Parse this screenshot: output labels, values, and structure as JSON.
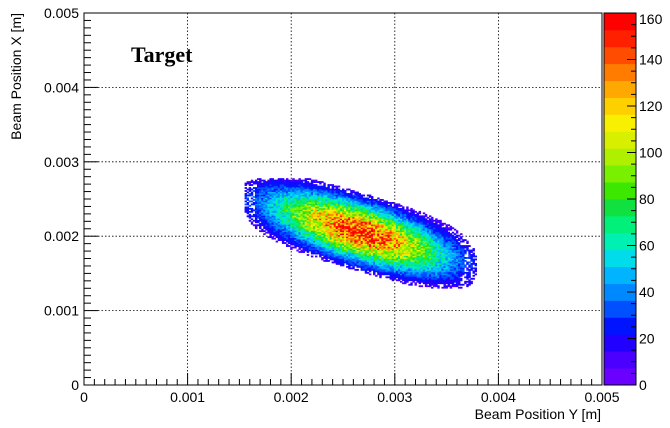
{
  "chart_data": {
    "type": "heatmap",
    "annotation": "Target",
    "xlabel": "Beam Position Y [m]",
    "ylabel": "Beam Position X [m]",
    "xlim": [
      0,
      0.005
    ],
    "ylim": [
      0,
      0.005
    ],
    "x_ticks": [
      "0",
      "0.001",
      "0.002",
      "0.003",
      "0.004",
      "0.005"
    ],
    "y_ticks": [
      "0",
      "0.001",
      "0.002",
      "0.003",
      "0.004",
      "0.005"
    ],
    "grid": true,
    "colorbar": {
      "zlim": [
        0,
        160
      ],
      "ticks": [
        "0",
        "20",
        "40",
        "60",
        "80",
        "100",
        "120",
        "140",
        "160"
      ],
      "palette": [
        "#6a00ff",
        "#4b00ff",
        "#2200ff",
        "#0014ff",
        "#0050ff",
        "#0088ff",
        "#00b4ff",
        "#00dcea",
        "#00f0b4",
        "#00f07a",
        "#10e040",
        "#3ce800",
        "#78f000",
        "#aef000",
        "#d8f000",
        "#f8f000",
        "#ffd000",
        "#ffa800",
        "#ff7c00",
        "#ff4c00",
        "#ff2000",
        "#ff0000"
      ]
    },
    "distribution": {
      "center": [
        0.00265,
        0.00205
      ],
      "y_range": [
        0.00155,
        0.0038
      ],
      "x_range": [
        0.0013,
        0.00278
      ],
      "peak_count": 155,
      "shape": "tilted ellipse elongated along Y, tilted down to the right"
    }
  }
}
